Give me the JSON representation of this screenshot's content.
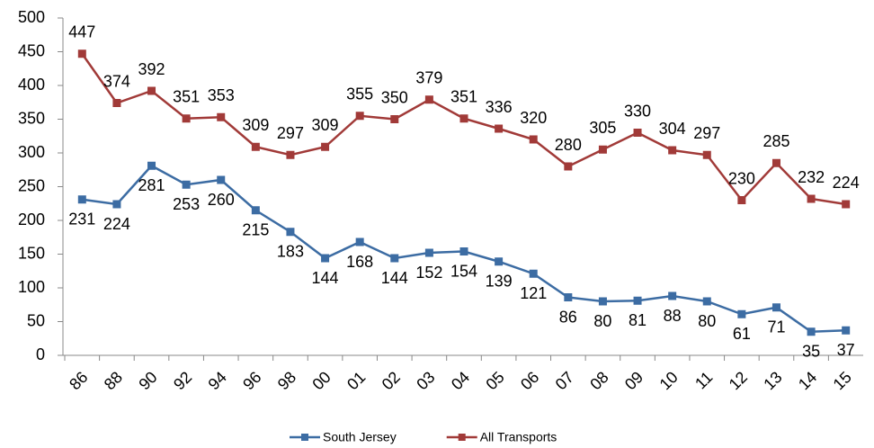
{
  "chart_data": {
    "type": "line",
    "categories": [
      "86",
      "88",
      "90",
      "92",
      "94",
      "96",
      "98",
      "00",
      "01",
      "02",
      "03",
      "04",
      "05",
      "06",
      "07",
      "08",
      "09",
      "10",
      "11",
      "12",
      "13",
      "14",
      "15"
    ],
    "series": [
      {
        "name": "South Jersey",
        "color": "#3c6ca3",
        "label_position": "below",
        "values": [
          231,
          224,
          281,
          253,
          260,
          215,
          183,
          144,
          168,
          144,
          152,
          154,
          139,
          121,
          86,
          80,
          81,
          88,
          80,
          61,
          71,
          35,
          37
        ]
      },
      {
        "name": "All Transports",
        "color": "#a13a38",
        "label_position": "above",
        "values": [
          447,
          374,
          392,
          351,
          353,
          309,
          297,
          309,
          355,
          350,
          379,
          351,
          336,
          320,
          280,
          305,
          330,
          304,
          297,
          230,
          285,
          232,
          224
        ]
      }
    ],
    "ylim": [
      0,
      500
    ],
    "yticks": [
      0,
      50,
      100,
      150,
      200,
      250,
      300,
      350,
      400,
      450,
      500
    ],
    "grid": false,
    "legend": "bottom"
  }
}
